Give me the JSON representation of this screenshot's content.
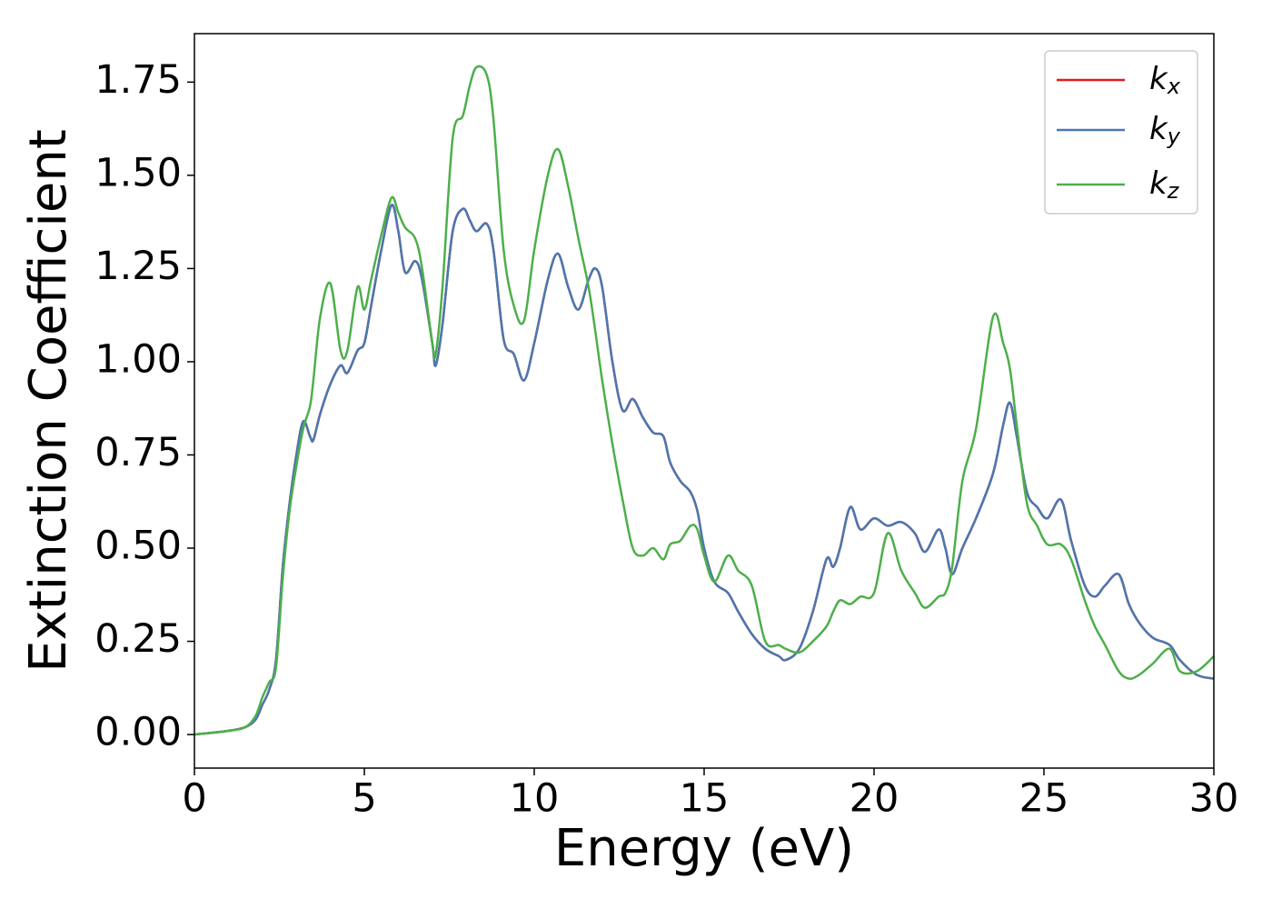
{
  "chart_data": {
    "type": "line",
    "xlabel": "Energy (eV)",
    "ylabel": "Extinction Coefficient",
    "x": [
      0,
      1,
      1.5,
      1.8,
      2.0,
      2.2,
      2.4,
      2.6,
      2.8,
      3.0,
      3.2,
      3.4,
      3.5,
      3.7,
      4.0,
      4.3,
      4.5,
      4.8,
      5.0,
      5.2,
      5.5,
      5.8,
      6.0,
      6.2,
      6.5,
      6.7,
      7.0,
      7.1,
      7.3,
      7.6,
      7.9,
      8.1,
      8.3,
      8.6,
      8.8,
      9.1,
      9.4,
      9.7,
      10.0,
      10.4,
      10.7,
      11.0,
      11.3,
      11.6,
      11.8,
      12.0,
      12.3,
      12.6,
      12.9,
      13.2,
      13.5,
      13.8,
      14.0,
      14.3,
      14.6,
      14.8,
      15.0,
      15.3,
      15.7,
      16.0,
      16.4,
      16.8,
      17.2,
      17.4,
      17.8,
      18.2,
      18.6,
      18.8,
      19.0,
      19.3,
      19.6,
      20.0,
      20.4,
      20.8,
      21.2,
      21.5,
      21.9,
      22.1,
      22.3,
      22.6,
      23.0,
      23.5,
      23.8,
      24.0,
      24.2,
      24.5,
      24.8,
      25.1,
      25.5,
      25.8,
      26.2,
      26.5,
      26.8,
      27.2,
      27.5,
      27.8,
      28.2,
      28.7,
      29.0,
      29.5,
      30.0
    ],
    "series": [
      {
        "name": "kx",
        "color": "#e41a1c",
        "values": [
          0,
          0.01,
          0.02,
          0.04,
          0.08,
          0.12,
          0.2,
          0.45,
          0.62,
          0.75,
          0.84,
          0.8,
          0.79,
          0.86,
          0.94,
          0.99,
          0.97,
          1.03,
          1.05,
          1.15,
          1.3,
          1.42,
          1.35,
          1.24,
          1.27,
          1.22,
          1.05,
          0.99,
          1.1,
          1.35,
          1.41,
          1.38,
          1.35,
          1.37,
          1.3,
          1.06,
          1.02,
          0.95,
          1.05,
          1.22,
          1.29,
          1.2,
          1.14,
          1.22,
          1.25,
          1.2,
          1.0,
          0.87,
          0.9,
          0.85,
          0.81,
          0.8,
          0.73,
          0.68,
          0.65,
          0.6,
          0.5,
          0.41,
          0.38,
          0.33,
          0.27,
          0.23,
          0.21,
          0.2,
          0.23,
          0.33,
          0.47,
          0.45,
          0.5,
          0.61,
          0.55,
          0.58,
          0.56,
          0.57,
          0.54,
          0.49,
          0.55,
          0.5,
          0.43,
          0.5,
          0.58,
          0.7,
          0.83,
          0.89,
          0.8,
          0.65,
          0.61,
          0.58,
          0.63,
          0.52,
          0.4,
          0.37,
          0.4,
          0.43,
          0.35,
          0.3,
          0.26,
          0.24,
          0.2,
          0.16,
          0.15
        ]
      },
      {
        "name": "ky",
        "color": "#4a78b0",
        "values": [
          0,
          0.01,
          0.02,
          0.04,
          0.08,
          0.12,
          0.2,
          0.45,
          0.62,
          0.75,
          0.84,
          0.8,
          0.79,
          0.86,
          0.94,
          0.99,
          0.97,
          1.03,
          1.05,
          1.15,
          1.3,
          1.42,
          1.35,
          1.24,
          1.27,
          1.22,
          1.05,
          0.99,
          1.1,
          1.35,
          1.41,
          1.38,
          1.35,
          1.37,
          1.3,
          1.06,
          1.02,
          0.95,
          1.05,
          1.22,
          1.29,
          1.2,
          1.14,
          1.22,
          1.25,
          1.2,
          1.0,
          0.87,
          0.9,
          0.85,
          0.81,
          0.8,
          0.73,
          0.68,
          0.65,
          0.6,
          0.5,
          0.41,
          0.38,
          0.33,
          0.27,
          0.23,
          0.21,
          0.2,
          0.23,
          0.33,
          0.47,
          0.45,
          0.5,
          0.61,
          0.55,
          0.58,
          0.56,
          0.57,
          0.54,
          0.49,
          0.55,
          0.5,
          0.43,
          0.5,
          0.58,
          0.7,
          0.83,
          0.89,
          0.8,
          0.65,
          0.61,
          0.58,
          0.63,
          0.52,
          0.4,
          0.37,
          0.4,
          0.43,
          0.35,
          0.3,
          0.26,
          0.24,
          0.2,
          0.16,
          0.15
        ]
      },
      {
        "name": "kz",
        "color": "#4daf4a",
        "values": [
          0,
          0.01,
          0.02,
          0.05,
          0.1,
          0.14,
          0.18,
          0.42,
          0.6,
          0.72,
          0.82,
          0.88,
          0.95,
          1.12,
          1.21,
          1.03,
          1.03,
          1.2,
          1.14,
          1.22,
          1.34,
          1.44,
          1.4,
          1.36,
          1.33,
          1.25,
          1.05,
          1.02,
          1.2,
          1.6,
          1.66,
          1.74,
          1.79,
          1.77,
          1.65,
          1.3,
          1.15,
          1.11,
          1.3,
          1.5,
          1.57,
          1.47,
          1.33,
          1.2,
          1.08,
          0.95,
          0.78,
          0.63,
          0.5,
          0.48,
          0.5,
          0.47,
          0.51,
          0.52,
          0.56,
          0.55,
          0.48,
          0.41,
          0.48,
          0.44,
          0.4,
          0.25,
          0.24,
          0.23,
          0.22,
          0.25,
          0.29,
          0.33,
          0.36,
          0.35,
          0.37,
          0.38,
          0.54,
          0.44,
          0.38,
          0.34,
          0.37,
          0.38,
          0.45,
          0.68,
          0.82,
          1.12,
          1.05,
          0.98,
          0.83,
          0.62,
          0.56,
          0.51,
          0.51,
          0.47,
          0.36,
          0.29,
          0.24,
          0.17,
          0.15,
          0.16,
          0.19,
          0.23,
          0.17,
          0.17,
          0.21
        ]
      }
    ],
    "xlim": [
      0,
      30
    ],
    "xticks": [
      0,
      5,
      10,
      15,
      20,
      25,
      30
    ],
    "ylim": [
      -0.09,
      1.88
    ],
    "yticks": [
      {
        "value": 0,
        "label": "0.00"
      },
      0.25,
      {
        "value": 0.5,
        "label": "0.50"
      },
      0.75,
      {
        "value": 1,
        "label": "1.00"
      },
      1.25,
      {
        "value": 1.5,
        "label": "1.50"
      },
      1.75
    ],
    "legend": "upper right"
  }
}
